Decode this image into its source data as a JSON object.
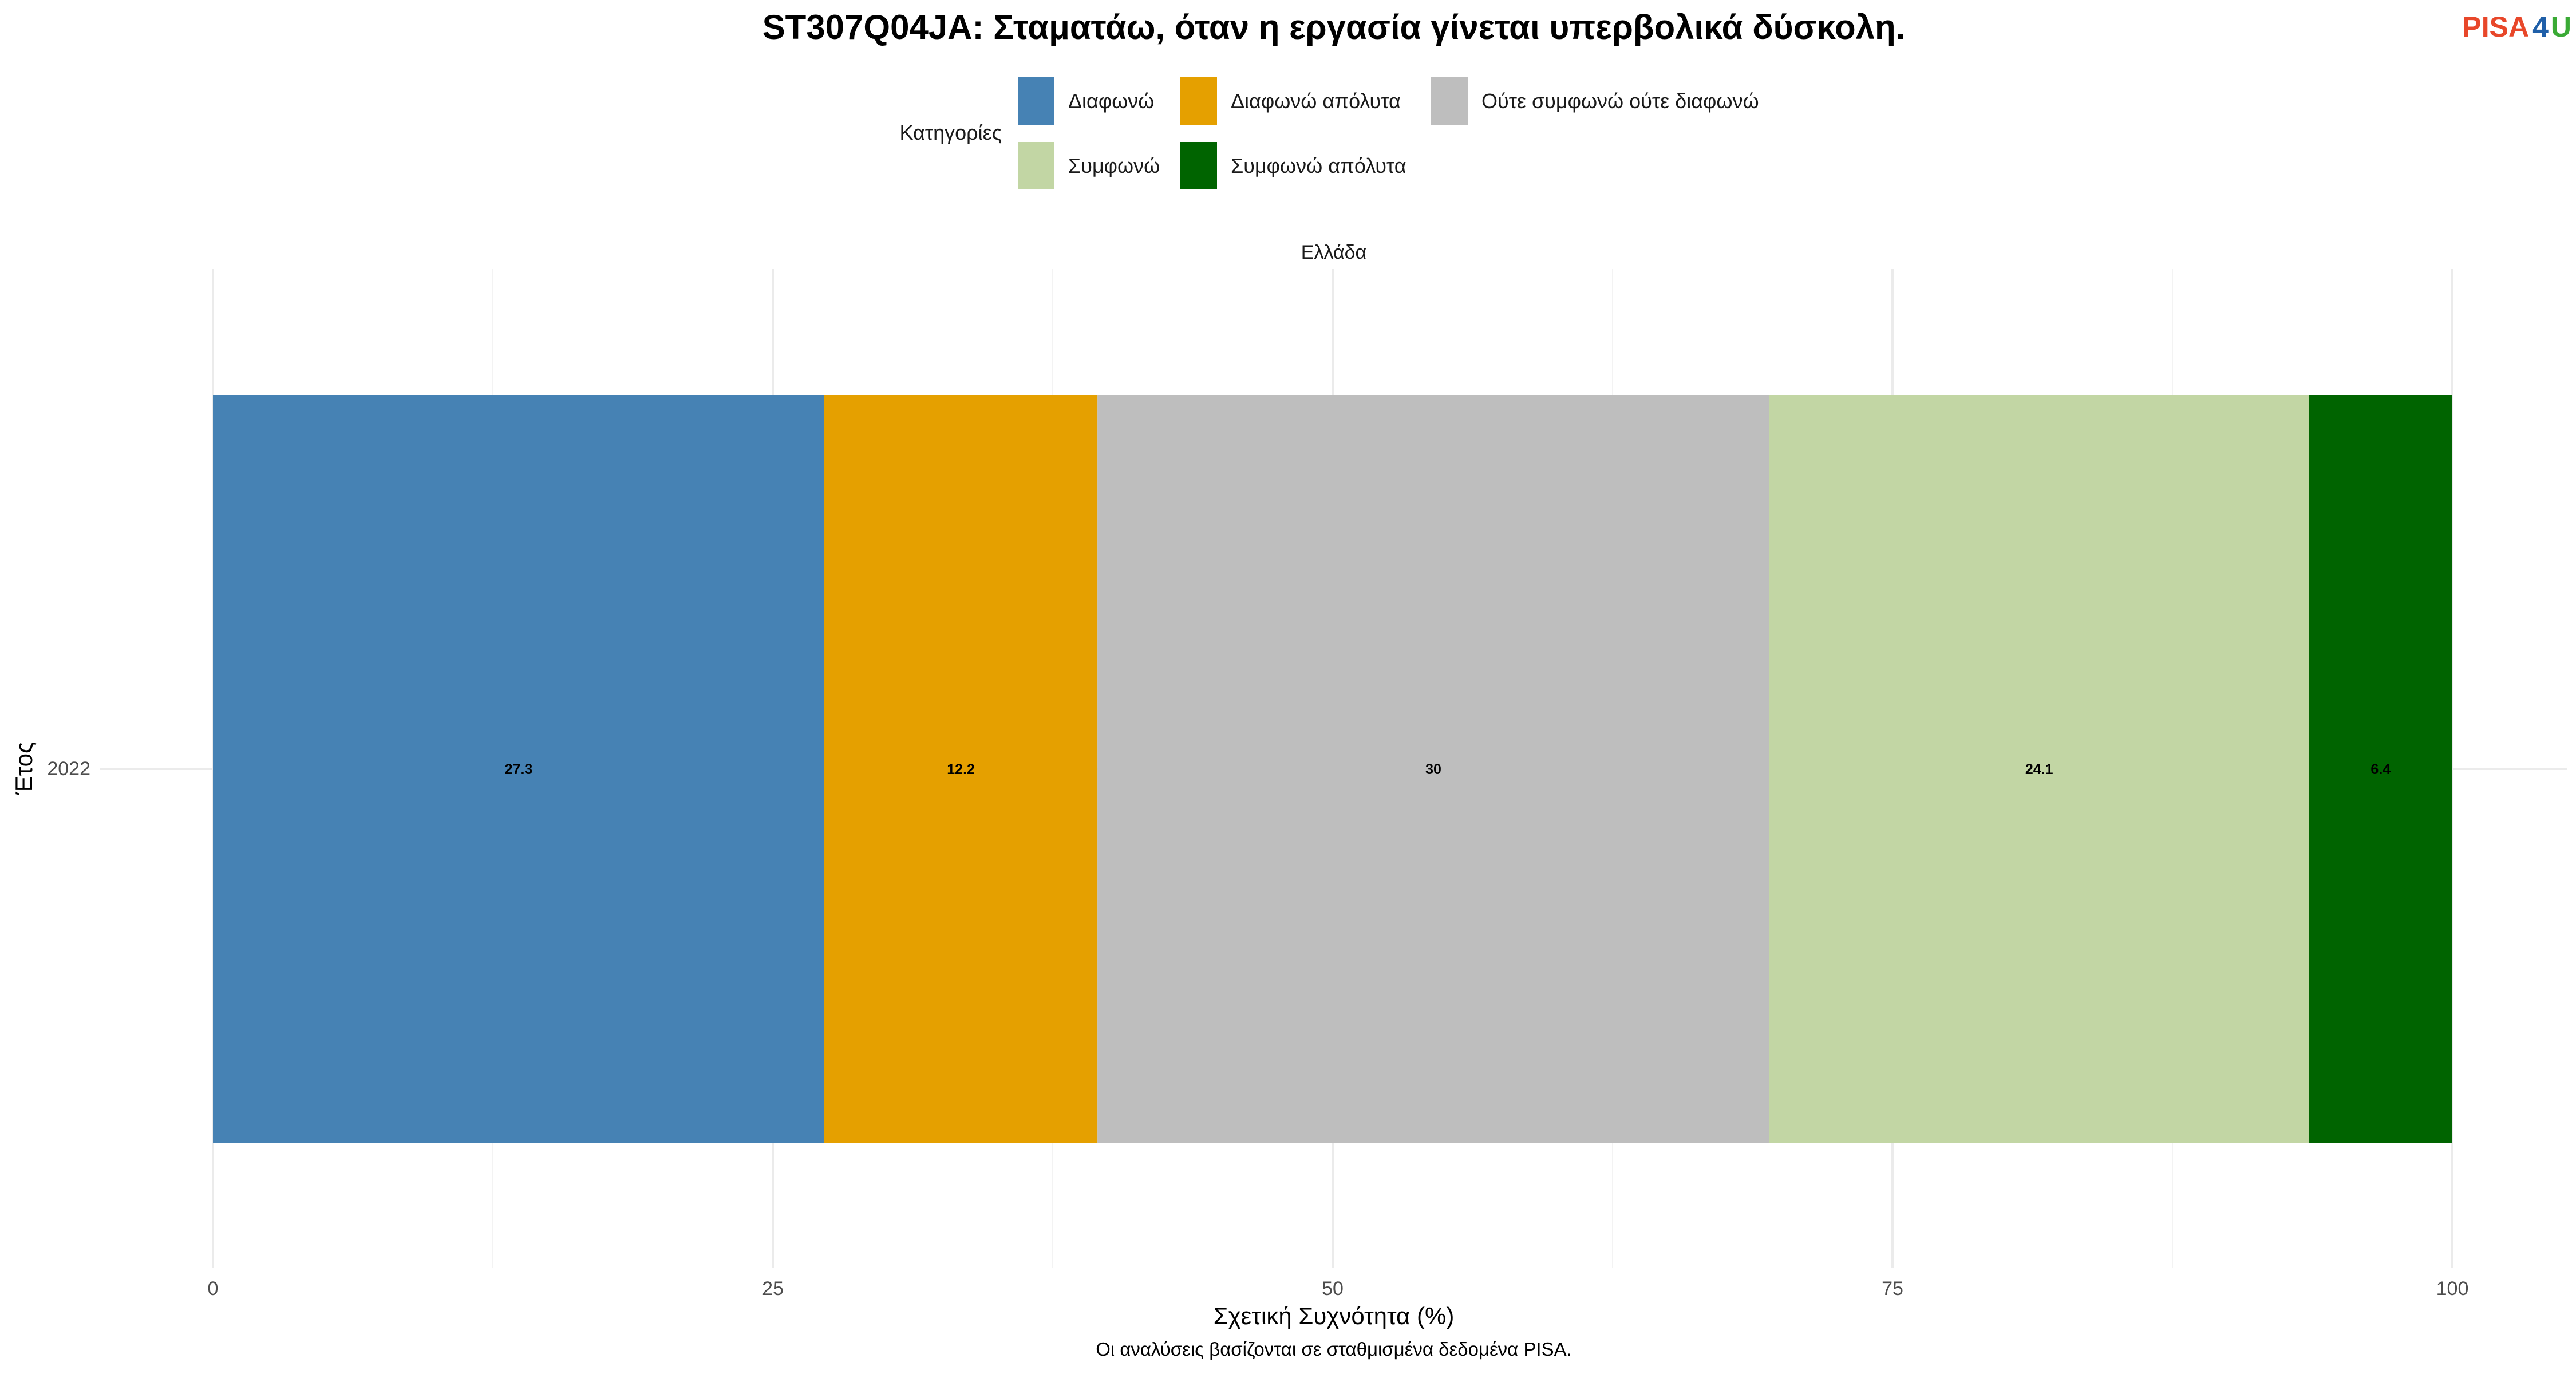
{
  "logo": {
    "part1": "PISA",
    "part2": "4",
    "part3": "U",
    "colors": {
      "part1": "#e8472a",
      "part2": "#1f5fa8",
      "part3": "#3aaa35"
    }
  },
  "chart_data": {
    "type": "bar",
    "orientation": "horizontal",
    "stacked": true,
    "title": "ST307Q04JA: Σταματάω, όταν η εργασία γίνεται υπερβολικά δύσκολη.",
    "facet": "Ελλάδα",
    "legend": {
      "title": "Κατηγορίες",
      "position": "top",
      "entries": [
        {
          "label": "Διαφωνώ",
          "color": "#4682b4"
        },
        {
          "label": "Διαφωνώ απόλυτα",
          "color": "#e5a000"
        },
        {
          "label": "Ούτε συμφωνώ ούτε διαφωνώ",
          "color": "#bebebe"
        },
        {
          "label": "Συμφωνώ",
          "color": "#c2d6a4"
        },
        {
          "label": "Συμφωνώ απόλυτα",
          "color": "#006400"
        }
      ]
    },
    "categories": [
      "2022"
    ],
    "series": [
      {
        "name": "Διαφωνώ",
        "values": [
          27.3
        ],
        "color": "#4682b4"
      },
      {
        "name": "Διαφωνώ απόλυτα",
        "values": [
          12.2
        ],
        "color": "#e5a000"
      },
      {
        "name": "Ούτε συμφωνώ ούτε διαφωνώ",
        "values": [
          30
        ],
        "color": "#bebebe"
      },
      {
        "name": "Συμφωνώ",
        "values": [
          24.1
        ],
        "color": "#c2d6a4"
      },
      {
        "name": "Συμφωνώ απόλυτα",
        "values": [
          6.4
        ],
        "color": "#006400"
      }
    ],
    "xlabel": "Σχετική Συχνότητα (%)",
    "ylabel": "Έτος",
    "xlim": [
      0,
      100
    ],
    "xticks": [
      0,
      25,
      50,
      75,
      100
    ],
    "grid": true,
    "caption": "Οι αναλύσεις βασίζονται σε σταθμισμένα δεδομένα PISA."
  }
}
